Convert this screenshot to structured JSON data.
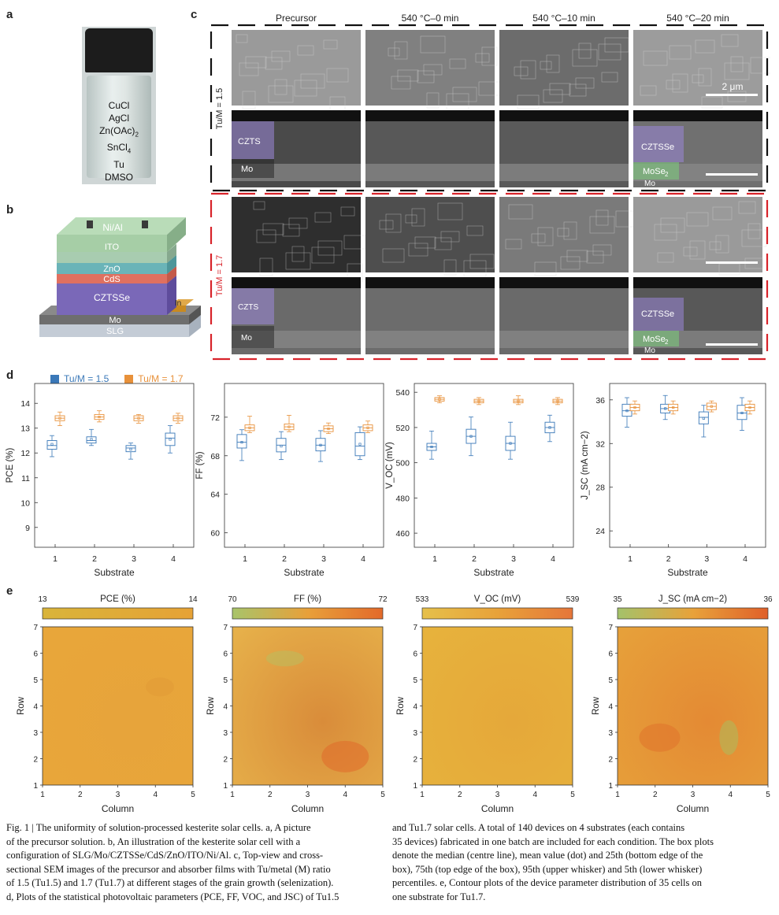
{
  "panel_labels": {
    "a": "a",
    "b": "b",
    "c": "c",
    "d": "d",
    "e": "e"
  },
  "vial": {
    "lines": [
      "CuCl",
      "AgCl",
      "Zn(OAc)",
      "SnCl",
      "Tu",
      "DMSO"
    ],
    "subs": [
      "",
      "",
      "2",
      "4",
      "",
      ""
    ]
  },
  "device_layers": {
    "top": "Ni/Al",
    "ito": "ITO",
    "zno": "ZnO",
    "cds": "CdS",
    "czts": "CZTSSe",
    "in": "In",
    "mo": "Mo",
    "slg": "SLG"
  },
  "sem": {
    "columns": [
      "Precursor",
      "540 °C–0 min",
      "540 °C–10 min",
      "540 °C–20 min"
    ],
    "row_labels": [
      "Tu/M = 1.5",
      "Tu/M = 1.7"
    ],
    "scale": "2 μm",
    "czts": "CZTS",
    "mo": "Mo",
    "cztsse": "CZTSSe",
    "mose": "MoSe",
    "mose_sub": "2"
  },
  "legend": {
    "s1": "Tu/M = 1.5",
    "s2": "Tu/M = 1.7"
  },
  "colors": {
    "blue": "#3a78b8",
    "orange": "#e8913a",
    "red_box": "#d8232a"
  },
  "chart_data": [
    {
      "type": "box",
      "ylabel": "PCE (%)",
      "xlabel": "Substrate",
      "ylim": [
        8.2,
        14.8
      ],
      "yticks": [
        9,
        10,
        11,
        12,
        13,
        14
      ],
      "categories": [
        1,
        2,
        3,
        4
      ],
      "series": [
        {
          "name": "Tu/M = 1.5",
          "median": [
            12.3,
            12.5,
            12.2,
            12.6
          ],
          "mean": [
            12.35,
            12.55,
            12.15,
            12.55
          ],
          "q1": [
            12.15,
            12.4,
            12.05,
            12.3
          ],
          "q3": [
            12.5,
            12.65,
            12.3,
            12.8
          ],
          "lo": [
            11.85,
            12.3,
            11.75,
            12.0
          ],
          "hi": [
            12.7,
            12.95,
            12.4,
            13.1
          ]
        },
        {
          "name": "Tu/M = 1.7",
          "median": [
            13.4,
            13.45,
            13.4,
            13.4
          ],
          "mean": [
            13.4,
            13.45,
            13.4,
            13.4
          ],
          "q1": [
            13.3,
            13.35,
            13.3,
            13.3
          ],
          "q3": [
            13.5,
            13.55,
            13.5,
            13.5
          ],
          "lo": [
            13.1,
            13.25,
            13.2,
            13.2
          ],
          "hi": [
            13.65,
            13.7,
            13.55,
            13.6
          ]
        }
      ]
    },
    {
      "type": "box",
      "ylabel": "FF (%)",
      "xlabel": "Substrate",
      "ylim": [
        58.5,
        75.5
      ],
      "yticks": [
        60,
        64,
        68,
        72
      ],
      "categories": [
        1,
        2,
        3,
        4
      ],
      "series": [
        {
          "name": "Tu/M = 1.5",
          "median": [
            69.4,
            69.1,
            69.1,
            69.0
          ],
          "mean": [
            69.4,
            69.0,
            69.1,
            69.2
          ],
          "q1": [
            68.8,
            68.4,
            68.5,
            68.0
          ],
          "q3": [
            70.2,
            69.8,
            69.8,
            70.4
          ],
          "lo": [
            67.5,
            67.6,
            67.4,
            67.6
          ],
          "hi": [
            70.7,
            70.5,
            70.6,
            71.0
          ]
        },
        {
          "name": "Tu/M = 1.7",
          "median": [
            70.9,
            71.0,
            70.8,
            70.9
          ],
          "mean": [
            70.9,
            71.0,
            70.8,
            70.9
          ],
          "q1": [
            70.6,
            70.7,
            70.5,
            70.6
          ],
          "q3": [
            71.2,
            71.3,
            71.1,
            71.2
          ],
          "lo": [
            70.4,
            70.5,
            70.3,
            70.4
          ],
          "hi": [
            72.1,
            72.2,
            71.4,
            71.6
          ]
        }
      ]
    },
    {
      "type": "box",
      "ylabel": "V_OC (mV)",
      "xlabel": "Substrate",
      "ylim": [
        452,
        545
      ],
      "yticks": [
        460,
        480,
        500,
        520,
        540
      ],
      "categories": [
        1,
        2,
        3,
        4
      ],
      "series": [
        {
          "name": "Tu/M = 1.5",
          "median": [
            509,
            515,
            511,
            520
          ],
          "mean": [
            509,
            515,
            511,
            520
          ],
          "q1": [
            507,
            511,
            507,
            517
          ],
          "q3": [
            511,
            519,
            515,
            523
          ],
          "lo": [
            502,
            504,
            502,
            512
          ],
          "hi": [
            518,
            526,
            523,
            527
          ]
        },
        {
          "name": "Tu/M = 1.7",
          "median": [
            536,
            535,
            535,
            535
          ],
          "mean": [
            536,
            535,
            535,
            535
          ],
          "q1": [
            535,
            534,
            534,
            534
          ],
          "q3": [
            537,
            536,
            536,
            536
          ],
          "lo": [
            534,
            533,
            533,
            533
          ],
          "hi": [
            538,
            537,
            538,
            537
          ]
        }
      ]
    },
    {
      "type": "box",
      "ylabel": "J_SC (mA cm−2)",
      "xlabel": "Substrate",
      "ylim": [
        22.5,
        37.5
      ],
      "yticks": [
        24,
        28,
        32,
        36
      ],
      "categories": [
        1,
        2,
        3,
        4
      ],
      "series": [
        {
          "name": "Tu/M = 1.5",
          "median": [
            35.0,
            35.2,
            34.4,
            34.8
          ],
          "mean": [
            35.0,
            35.2,
            34.3,
            34.8
          ],
          "q1": [
            34.5,
            34.8,
            33.8,
            34.2
          ],
          "q3": [
            35.6,
            35.6,
            34.9,
            35.5
          ],
          "lo": [
            33.5,
            34.2,
            32.6,
            33.2
          ],
          "hi": [
            36.2,
            36.4,
            35.5,
            36.2
          ]
        },
        {
          "name": "Tu/M = 1.7",
          "median": [
            35.3,
            35.3,
            35.4,
            35.3
          ],
          "mean": [
            35.3,
            35.3,
            35.4,
            35.3
          ],
          "q1": [
            35.0,
            35.0,
            35.1,
            35.0
          ],
          "q3": [
            35.6,
            35.6,
            35.7,
            35.6
          ],
          "lo": [
            34.7,
            34.7,
            34.9,
            34.7
          ],
          "hi": [
            35.9,
            35.9,
            35.9,
            35.9
          ]
        }
      ]
    },
    {
      "type": "heatmap",
      "title": "PCE (%)",
      "cbar": [
        13,
        14
      ],
      "xlabel": "Column",
      "ylabel": "Row",
      "x": [
        1,
        2,
        3,
        4,
        5
      ],
      "y": [
        1,
        2,
        3,
        4,
        5,
        6,
        7
      ]
    },
    {
      "type": "heatmap",
      "title": "FF (%)",
      "cbar": [
        70,
        72
      ],
      "xlabel": "Column",
      "ylabel": "Row",
      "x": [
        1,
        2,
        3,
        4,
        5
      ],
      "y": [
        1,
        2,
        3,
        4,
        5,
        6,
        7
      ]
    },
    {
      "type": "heatmap",
      "title": "V_OC (mV)",
      "cbar": [
        533,
        539
      ],
      "xlabel": "Column",
      "ylabel": "Row",
      "x": [
        1,
        2,
        3,
        4,
        5
      ],
      "y": [
        1,
        2,
        3,
        4,
        5,
        6,
        7
      ]
    },
    {
      "type": "heatmap",
      "title": "J_SC (mA cm−2)",
      "cbar": [
        35,
        36
      ],
      "xlabel": "Column",
      "ylabel": "Row",
      "x": [
        1,
        2,
        3,
        4,
        5
      ],
      "y": [
        1,
        2,
        3,
        4,
        5,
        6,
        7
      ]
    }
  ],
  "caption": {
    "left": [
      "Fig. 1 | The uniformity of solution-processed kesterite solar cells. a, A picture",
      "of the precursor solution. b, An illustration of the kesterite solar cell with a",
      "configuration of SLG/Mo/CZTSSe/CdS/ZnO/ITO/Ni/Al. c, Top-view and cross-",
      "sectional SEM images of the precursor and absorber films with Tu/metal (M) ratio",
      "of 1.5 (Tu1.5) and 1.7 (Tu1.7) at different stages of the grain growth (selenization).",
      "d, Plots of the statistical photovoltaic parameters (PCE, FF, VOC, and JSC) of Tu1.5"
    ],
    "right": [
      "and Tu1.7 solar cells. A total of 140 devices on 4 substrates (each contains",
      "35 devices) fabricated in one batch are included for each condition. The box plots",
      "denote the median (centre line), mean value (dot) and 25th (bottom edge of the",
      "box), 75th (top edge of the box), 95th (upper whisker) and 5th (lower whisker)",
      "percentiles. e, Contour plots of the device parameter distribution of 35 cells on",
      "one substrate for Tu1.7."
    ]
  }
}
